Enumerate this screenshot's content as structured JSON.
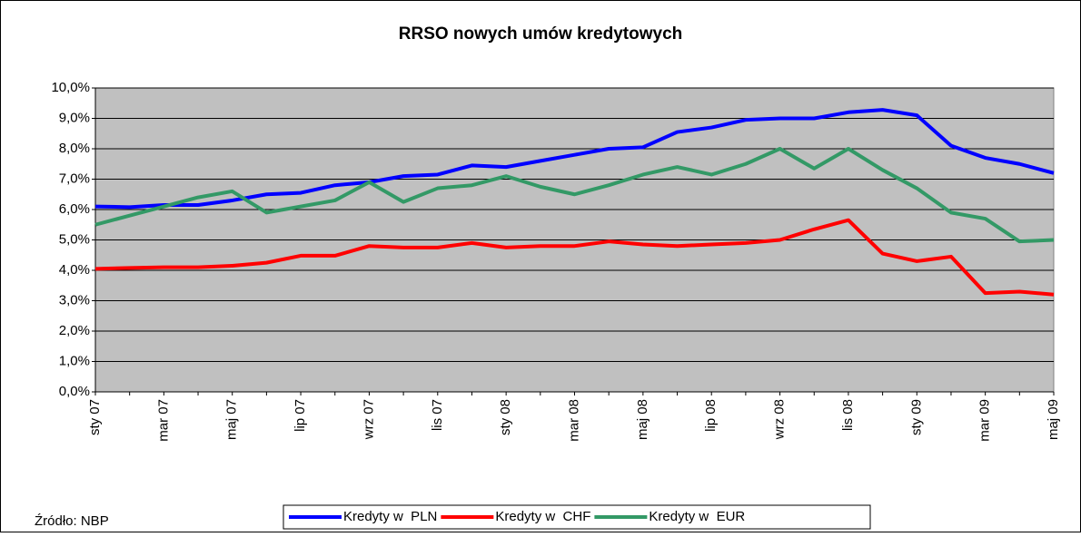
{
  "chart_data": {
    "type": "line",
    "title": "RRSO nowych umów kredytowych",
    "source": "Źródło: NBP",
    "categories": [
      "sty 07",
      null,
      "mar 07",
      null,
      "maj 07",
      null,
      "lip 07",
      null,
      "wrz 07",
      null,
      "lis 07",
      null,
      "sty 08",
      null,
      "mar 08",
      null,
      "maj 08",
      null,
      "lip 08",
      null,
      "wrz 08",
      null,
      "lis 08",
      null,
      "sty 09",
      null,
      "mar 09",
      null,
      "maj 09"
    ],
    "series": [
      {
        "name": "Kredyty w  PLN",
        "color": "#0000ff",
        "values": [
          6.1,
          6.08,
          6.15,
          6.15,
          6.3,
          6.5,
          6.55,
          6.8,
          6.9,
          7.1,
          7.15,
          7.45,
          7.4,
          7.6,
          7.8,
          8.0,
          8.05,
          8.55,
          8.7,
          8.95,
          9.0,
          9.0,
          9.2,
          9.28,
          9.1,
          8.1,
          7.7,
          7.5,
          7.2
        ]
      },
      {
        "name": "Kredyty w  CHF",
        "color": "#ff0000",
        "values": [
          4.05,
          4.08,
          4.1,
          4.1,
          4.15,
          4.25,
          4.48,
          4.48,
          4.8,
          4.75,
          4.75,
          4.9,
          4.75,
          4.8,
          4.8,
          4.95,
          4.85,
          4.8,
          4.85,
          4.9,
          5.0,
          5.35,
          5.65,
          4.55,
          4.3,
          4.45,
          3.25,
          3.3,
          3.2
        ]
      },
      {
        "name": "Kredyty w  EUR",
        "color": "#339966",
        "values": [
          5.5,
          5.8,
          6.1,
          6.4,
          6.6,
          5.9,
          6.1,
          6.3,
          6.9,
          6.25,
          6.7,
          6.8,
          7.1,
          6.75,
          6.5,
          6.8,
          7.15,
          7.4,
          7.15,
          7.5,
          8.0,
          7.35,
          8.0,
          7.3,
          6.7,
          5.9,
          5.7,
          4.95,
          5.0
        ]
      }
    ],
    "ylim": [
      0,
      10
    ],
    "yticks": [
      {
        "value": 0,
        "label": "0,0%"
      },
      {
        "value": 1,
        "label": "1,0%"
      },
      {
        "value": 2,
        "label": "2,0%"
      },
      {
        "value": 3,
        "label": "3,0%"
      },
      {
        "value": 4,
        "label": "4,0%"
      },
      {
        "value": 5,
        "label": "5,0%"
      },
      {
        "value": 6,
        "label": "6,0%"
      },
      {
        "value": 7,
        "label": "7,0%"
      },
      {
        "value": 8,
        "label": "8,0%"
      },
      {
        "value": 9,
        "label": "9,0%"
      },
      {
        "value": 10,
        "label": "10,0%"
      }
    ],
    "grid": true,
    "plot_background": "#c0c0c0",
    "legend": "bottom"
  }
}
